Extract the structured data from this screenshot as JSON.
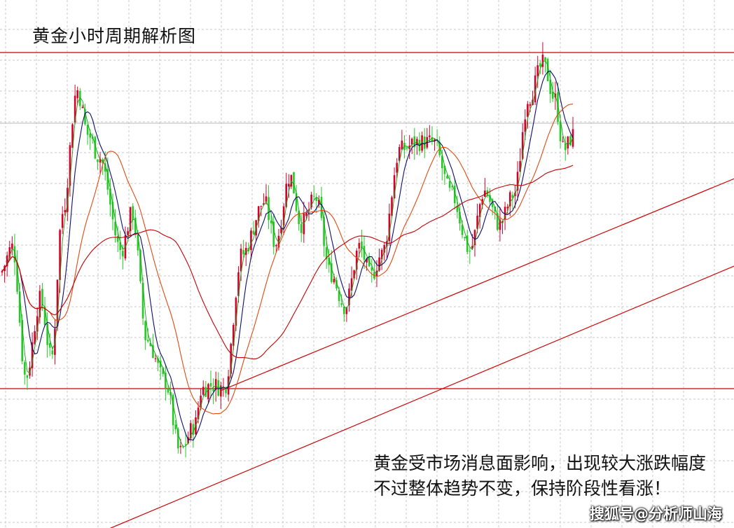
{
  "title": "黄金小时周期解析图",
  "annotation": {
    "line1": "黄金受市场消息面影响，出现较大涨跌幅度",
    "line2": "不过整体趋势不变，保持阶段性看涨！"
  },
  "watermark": "搜狐号@分析师山海",
  "colors": {
    "bull": "#d4002a",
    "bear": "#22cc22",
    "ma_fast": "#1a9e1a",
    "ma_mid": "#0d0d6b",
    "ma_slow": "#e04a10",
    "ma_long": "#c40000",
    "levels": "#cc0000",
    "grid": "#c8c8c8"
  },
  "chart_data": {
    "type": "candlestick",
    "levels": [
      {
        "kind": "resistance",
        "value": 100
      },
      {
        "kind": "support",
        "value": 10
      }
    ],
    "trendlines": [
      {
        "from": [
          0.3,
          9.4
        ],
        "to": [
          1.0,
          66.2
        ]
      },
      {
        "from": [
          0.15,
          -27.4
        ],
        "to": [
          1.0,
          42.8
        ]
      }
    ],
    "keypoints": [
      [
        0.0,
        41
      ],
      [
        0.017,
        48
      ],
      [
        0.035,
        13
      ],
      [
        0.055,
        34
      ],
      [
        0.07,
        18
      ],
      [
        0.085,
        57
      ],
      [
        0.105,
        90
      ],
      [
        0.12,
        78
      ],
      [
        0.135,
        72
      ],
      [
        0.165,
        47
      ],
      [
        0.18,
        57
      ],
      [
        0.2,
        23
      ],
      [
        0.225,
        12
      ],
      [
        0.245,
        -7
      ],
      [
        0.265,
        0
      ],
      [
        0.275,
        10
      ],
      [
        0.29,
        11
      ],
      [
        0.305,
        10
      ],
      [
        0.33,
        46
      ],
      [
        0.36,
        60
      ],
      [
        0.375,
        49
      ],
      [
        0.395,
        67
      ],
      [
        0.41,
        54
      ],
      [
        0.43,
        61
      ],
      [
        0.45,
        41
      ],
      [
        0.47,
        32
      ],
      [
        0.49,
        48
      ],
      [
        0.505,
        40
      ],
      [
        0.52,
        46
      ],
      [
        0.545,
        74
      ],
      [
        0.57,
        76
      ],
      [
        0.59,
        76
      ],
      [
        0.615,
        62
      ],
      [
        0.64,
        47
      ],
      [
        0.66,
        63
      ],
      [
        0.68,
        54
      ],
      [
        0.7,
        62
      ],
      [
        0.72,
        88
      ],
      [
        0.74,
        97
      ],
      [
        0.755,
        88
      ],
      [
        0.768,
        74
      ],
      [
        0.782,
        78
      ]
    ]
  }
}
